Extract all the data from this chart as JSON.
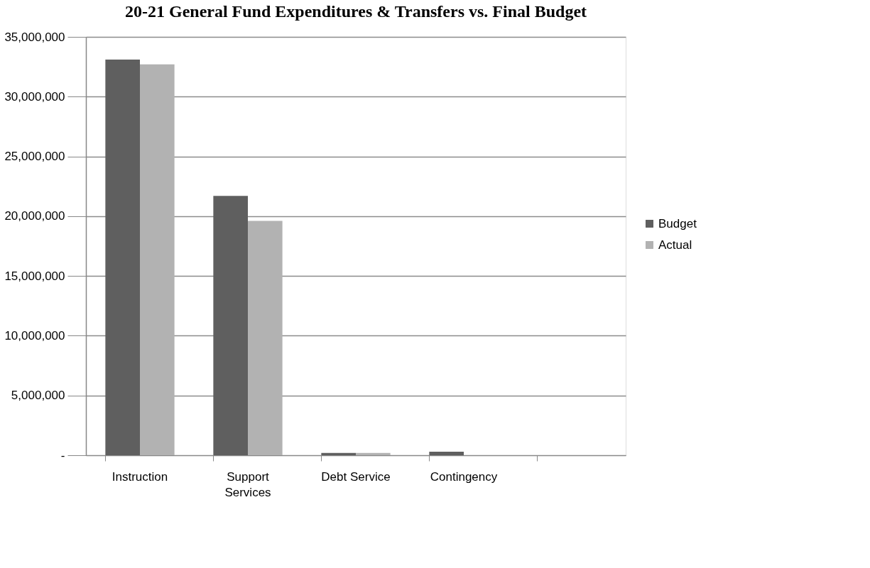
{
  "chart_data": {
    "type": "bar",
    "title": "20-21 General Fund Expenditures & Transfers vs. Final Budget",
    "categories": [
      "Instruction",
      "Support Services",
      "Debt Service",
      "Contingency",
      null
    ],
    "series": [
      {
        "name": "Budget",
        "color": "#5f5f5f",
        "values": [
          33100000,
          21700000,
          200000,
          300000,
          null
        ]
      },
      {
        "name": "Actual",
        "color": "#b2b2b2",
        "values": [
          32700000,
          19600000,
          200000,
          null,
          null
        ]
      }
    ],
    "ylim": [
      0,
      35000000
    ],
    "yticks": [
      {
        "value": 0,
        "label": "-"
      },
      {
        "value": 5000000,
        "label": "5,000,000"
      },
      {
        "value": 10000000,
        "label": "10,000,000"
      },
      {
        "value": 15000000,
        "label": "15,000,000"
      },
      {
        "value": 20000000,
        "label": "20,000,000"
      },
      {
        "value": 25000000,
        "label": "25,000,000"
      },
      {
        "value": 30000000,
        "label": "30,000,000"
      },
      {
        "value": 35000000,
        "label": "35,000,000"
      }
    ],
    "grid": "y",
    "legend": "right"
  }
}
